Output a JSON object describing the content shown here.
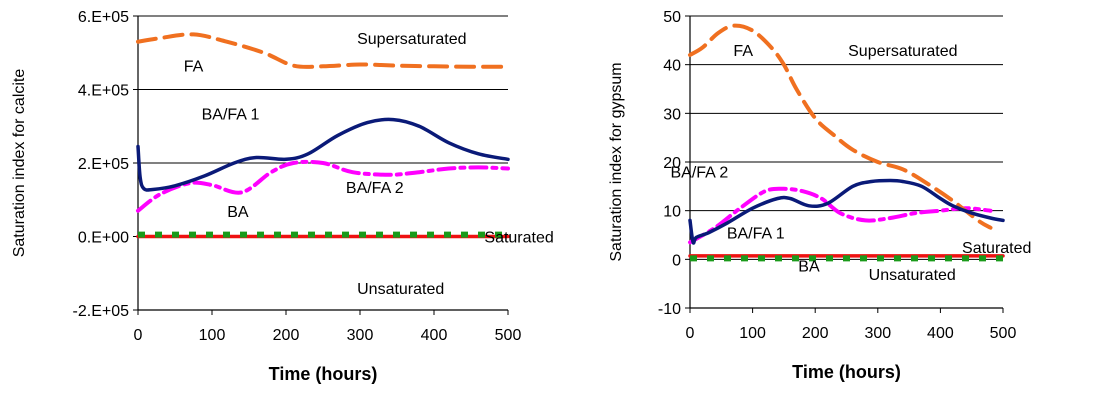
{
  "chart_data": [
    {
      "type": "line",
      "xlabel": "Time (hours)",
      "ylabel": "Saturation index for calcite",
      "xlim": [
        0,
        500
      ],
      "ylim": [
        -200000,
        600000
      ],
      "x_ticks": [
        "0",
        "100",
        "200",
        "300",
        "400",
        "500"
      ],
      "y_ticks": [
        "-2.E+05",
        "0.E+00",
        "2.E+05",
        "4.E+05",
        "6.E+05"
      ],
      "y_tick_values": [
        -200000,
        0,
        200000,
        400000,
        600000
      ],
      "grid": "horizontal",
      "annotations": [
        {
          "text": "Supersaturated",
          "x": 370,
          "y": 540000
        },
        {
          "text": "Saturated",
          "x": 515,
          "y": 0
        },
        {
          "text": "Unsaturated",
          "x": 355,
          "y": -140000
        },
        {
          "text": "FA",
          "x": 75,
          "y": 465000
        },
        {
          "text": "BA/FA 1",
          "x": 125,
          "y": 335000
        },
        {
          "text": "BA/FA 2",
          "x": 320,
          "y": 135000
        },
        {
          "text": "BA",
          "x": 135,
          "y": 70000
        }
      ],
      "series": [
        {
          "key": "FA",
          "color": "#f07020",
          "dash": "dashed",
          "x": [
            0,
            30,
            75,
            120,
            170,
            210,
            250,
            300,
            350,
            400,
            450,
            500
          ],
          "y": [
            530000,
            540000,
            550000,
            530000,
            500000,
            465000,
            463000,
            468000,
            465000,
            463000,
            462000,
            462000
          ]
        },
        {
          "key": "BA/FA 1",
          "color": "#0a1a78",
          "dash": "solid",
          "x": [
            0,
            3,
            8,
            20,
            50,
            90,
            130,
            160,
            200,
            230,
            270,
            310,
            345,
            380,
            420,
            460,
            500
          ],
          "y": [
            245000,
            160000,
            130000,
            128000,
            138000,
            165000,
            200000,
            215000,
            210000,
            225000,
            275000,
            310000,
            318000,
            300000,
            255000,
            225000,
            210000
          ]
        },
        {
          "key": "BA/FA 2",
          "color": "#ff00ff",
          "dash": "dashdot",
          "x": [
            0,
            30,
            70,
            100,
            140,
            180,
            210,
            250,
            290,
            340,
            380,
            420,
            460,
            500
          ],
          "y": [
            70000,
            115000,
            145000,
            140000,
            120000,
            175000,
            200000,
            200000,
            175000,
            168000,
            175000,
            185000,
            188000,
            185000
          ]
        },
        {
          "key": "BA",
          "color": "#1a9a1a",
          "dash": "dotted",
          "x": [
            0,
            500
          ],
          "y": [
            5000,
            5000
          ]
        },
        {
          "key": "Saturated",
          "color": "#ee1111",
          "dash": "solid",
          "x": [
            0,
            500
          ],
          "y": [
            0,
            0
          ]
        }
      ]
    },
    {
      "type": "line",
      "xlabel": "Time (hours)",
      "ylabel": "Saturation index for gypsum",
      "xlim": [
        0,
        500
      ],
      "ylim": [
        -10,
        50
      ],
      "x_ticks": [
        "0",
        "100",
        "200",
        "300",
        "400",
        "500"
      ],
      "y_ticks": [
        "-10",
        "0",
        "10",
        "20",
        "30",
        "40",
        "50"
      ],
      "y_tick_values": [
        -10,
        0,
        10,
        20,
        30,
        40,
        50
      ],
      "grid": "horizontal",
      "annotations": [
        {
          "text": "Supersaturated",
          "x": 340,
          "y": 43
        },
        {
          "text": "FA",
          "x": 85,
          "y": 43
        },
        {
          "text": "BA/FA 2",
          "x": 15,
          "y": 18
        },
        {
          "text": "BA/FA 1",
          "x": 105,
          "y": 5.5
        },
        {
          "text": "Saturated",
          "x": 490,
          "y": 2.5
        },
        {
          "text": "Unsaturated",
          "x": 355,
          "y": -3
        },
        {
          "text": "BA",
          "x": 190,
          "y": -1.3
        }
      ],
      "series": [
        {
          "key": "FA",
          "color": "#f07020",
          "dash": "dashed",
          "x": [
            0,
            20,
            45,
            70,
            100,
            130,
            150,
            170,
            200,
            230,
            260,
            300,
            340,
            380,
            420,
            460,
            480
          ],
          "y": [
            42,
            43.5,
            46.5,
            48,
            47,
            43.5,
            40,
            35,
            29,
            25.5,
            22.5,
            20,
            18.5,
            15.5,
            12,
            8,
            6.5
          ]
        },
        {
          "key": "BA/FA 1",
          "color": "#0a1a78",
          "dash": "solid",
          "x": [
            0,
            5,
            10,
            30,
            60,
            100,
            140,
            160,
            190,
            220,
            260,
            290,
            320,
            340,
            370,
            400,
            420,
            450,
            480,
            500
          ],
          "y": [
            8,
            3.5,
            4.5,
            5.5,
            7.5,
            10.5,
            12.5,
            12.5,
            11,
            11.5,
            15,
            16,
            16.2,
            16,
            15,
            12.5,
            11,
            9.5,
            8.5,
            8
          ]
        },
        {
          "key": "BA/FA 2",
          "color": "#ff00ff",
          "dash": "dashdot",
          "x": [
            0,
            40,
            80,
            120,
            150,
            180,
            210,
            240,
            280,
            320,
            360,
            400,
            440,
            480
          ],
          "y": [
            3.5,
            6.5,
            10.5,
            14,
            14.5,
            14,
            12.5,
            9.5,
            8,
            8.5,
            9.5,
            10,
            10.5,
            10
          ]
        },
        {
          "key": "BA",
          "color": "#1a9a1a",
          "dash": "dotted",
          "x": [
            0,
            500
          ],
          "y": [
            0.2,
            0.2
          ]
        },
        {
          "key": "Saturated",
          "color": "#ee1111",
          "dash": "solid",
          "x": [
            0,
            500
          ],
          "y": [
            0.7,
            0.7
          ]
        }
      ]
    }
  ]
}
